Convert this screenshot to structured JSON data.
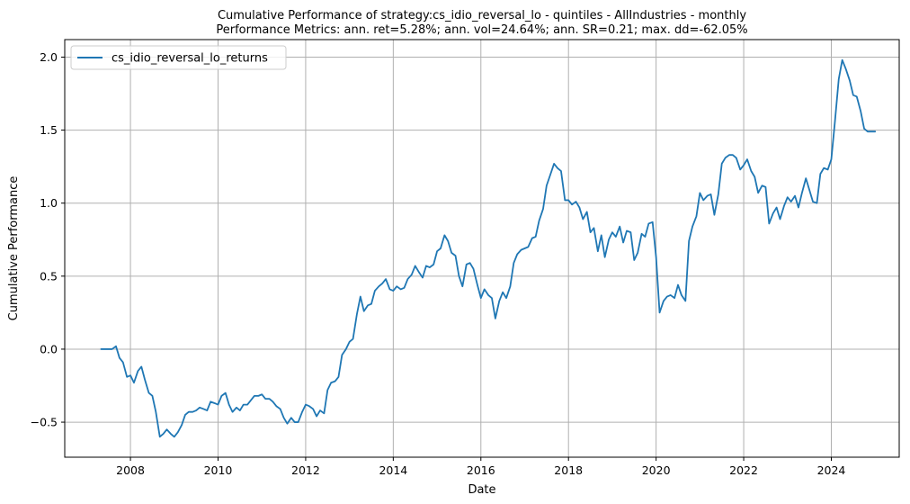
{
  "chart_data": {
    "type": "line",
    "title": "Cumulative Performance of strategy:cs_idio_reversal_lo - quintiles - AllIndustries - monthly",
    "subtitle": "Performance Metrics: ann. ret=5.28%; ann. vol=24.64%; ann. SR=0.21; max. dd=-62.05%",
    "xlabel": "Date",
    "ylabel": "Cumulative Performance",
    "xlim": [
      2006.5,
      2025.55
    ],
    "ylim": [
      -0.74,
      2.12
    ],
    "x_ticks": [
      2008,
      2010,
      2012,
      2014,
      2016,
      2018,
      2020,
      2022,
      2024
    ],
    "x_tick_labels": [
      "2008",
      "2010",
      "2012",
      "2014",
      "2016",
      "2018",
      "2020",
      "2022",
      "2024"
    ],
    "y_ticks": [
      -0.5,
      0.0,
      0.5,
      1.0,
      1.5,
      2.0
    ],
    "y_tick_labels": [
      "−0.5",
      "0.0",
      "0.5",
      "1.0",
      "1.5",
      "2.0"
    ],
    "grid": true,
    "legend_position": "top-left",
    "series": [
      {
        "name": "cs_idio_reversal_lo_returns",
        "color": "#1f77b4",
        "x": [
          2007.33,
          2007.42,
          2007.5,
          2007.58,
          2007.67,
          2007.75,
          2007.83,
          2007.92,
          2008.0,
          2008.08,
          2008.17,
          2008.25,
          2008.33,
          2008.42,
          2008.5,
          2008.58,
          2008.67,
          2008.75,
          2008.83,
          2008.92,
          2009.0,
          2009.08,
          2009.17,
          2009.25,
          2009.33,
          2009.42,
          2009.5,
          2009.58,
          2009.67,
          2009.75,
          2009.83,
          2009.92,
          2010.0,
          2010.08,
          2010.17,
          2010.25,
          2010.33,
          2010.42,
          2010.5,
          2010.58,
          2010.67,
          2010.75,
          2010.83,
          2010.92,
          2011.0,
          2011.08,
          2011.17,
          2011.25,
          2011.33,
          2011.42,
          2011.5,
          2011.58,
          2011.67,
          2011.75,
          2011.83,
          2011.92,
          2012.0,
          2012.08,
          2012.17,
          2012.25,
          2012.33,
          2012.42,
          2012.5,
          2012.58,
          2012.67,
          2012.75,
          2012.83,
          2012.92,
          2013.0,
          2013.08,
          2013.17,
          2013.25,
          2013.33,
          2013.42,
          2013.5,
          2013.58,
          2013.67,
          2013.75,
          2013.83,
          2013.92,
          2014.0,
          2014.08,
          2014.17,
          2014.25,
          2014.33,
          2014.42,
          2014.5,
          2014.58,
          2014.67,
          2014.75,
          2014.83,
          2014.92,
          2015.0,
          2015.08,
          2015.17,
          2015.25,
          2015.33,
          2015.42,
          2015.5,
          2015.58,
          2015.67,
          2015.75,
          2015.83,
          2015.92,
          2016.0,
          2016.08,
          2016.17,
          2016.25,
          2016.33,
          2016.42,
          2016.5,
          2016.58,
          2016.67,
          2016.75,
          2016.83,
          2016.92,
          2017.0,
          2017.08,
          2017.17,
          2017.25,
          2017.33,
          2017.42,
          2017.5,
          2017.58,
          2017.67,
          2017.75,
          2017.83,
          2017.92,
          2018.0,
          2018.08,
          2018.17,
          2018.25,
          2018.33,
          2018.42,
          2018.5,
          2018.58,
          2018.67,
          2018.75,
          2018.83,
          2018.92,
          2019.0,
          2019.08,
          2019.17,
          2019.25,
          2019.33,
          2019.42,
          2019.5,
          2019.58,
          2019.67,
          2019.75,
          2019.83,
          2019.92,
          2020.0,
          2020.08,
          2020.17,
          2020.25,
          2020.33,
          2020.42,
          2020.5,
          2020.58,
          2020.67,
          2020.75,
          2020.83,
          2020.92,
          2021.0,
          2021.08,
          2021.17,
          2021.25,
          2021.33,
          2021.42,
          2021.5,
          2021.58,
          2021.67,
          2021.75,
          2021.83,
          2021.92,
          2022.0,
          2022.08,
          2022.17,
          2022.25,
          2022.33,
          2022.42,
          2022.5,
          2022.58,
          2022.67,
          2022.75,
          2022.83,
          2022.92,
          2023.0,
          2023.08,
          2023.17,
          2023.25,
          2023.33,
          2023.42,
          2023.5,
          2023.58,
          2023.67,
          2023.75,
          2023.83,
          2023.92,
          2024.0,
          2024.08,
          2024.17,
          2024.25,
          2024.33,
          2024.42,
          2024.5,
          2024.58,
          2024.67,
          2024.75,
          2024.83,
          2024.92,
          2025.0
        ],
        "y": [
          0.0,
          0.0,
          0.0,
          0.0,
          0.02,
          -0.06,
          -0.09,
          -0.19,
          -0.18,
          -0.23,
          -0.15,
          -0.12,
          -0.21,
          -0.3,
          -0.32,
          -0.43,
          -0.6,
          -0.58,
          -0.55,
          -0.58,
          -0.6,
          -0.57,
          -0.52,
          -0.45,
          -0.43,
          -0.43,
          -0.42,
          -0.4,
          -0.41,
          -0.42,
          -0.36,
          -0.37,
          -0.38,
          -0.32,
          -0.3,
          -0.38,
          -0.43,
          -0.4,
          -0.42,
          -0.38,
          -0.38,
          -0.35,
          -0.32,
          -0.32,
          -0.31,
          -0.34,
          -0.34,
          -0.36,
          -0.39,
          -0.41,
          -0.47,
          -0.51,
          -0.47,
          -0.5,
          -0.5,
          -0.43,
          -0.38,
          -0.39,
          -0.41,
          -0.46,
          -0.42,
          -0.44,
          -0.28,
          -0.23,
          -0.22,
          -0.19,
          -0.04,
          0.0,
          0.05,
          0.07,
          0.24,
          0.36,
          0.26,
          0.3,
          0.31,
          0.4,
          0.43,
          0.45,
          0.48,
          0.41,
          0.4,
          0.43,
          0.41,
          0.42,
          0.48,
          0.51,
          0.57,
          0.53,
          0.49,
          0.57,
          0.56,
          0.58,
          0.67,
          0.69,
          0.78,
          0.74,
          0.66,
          0.64,
          0.5,
          0.43,
          0.58,
          0.59,
          0.55,
          0.44,
          0.35,
          0.41,
          0.37,
          0.35,
          0.21,
          0.33,
          0.39,
          0.35,
          0.43,
          0.59,
          0.65,
          0.68,
          0.69,
          0.7,
          0.76,
          0.77,
          0.88,
          0.96,
          1.12,
          1.19,
          1.27,
          1.24,
          1.22,
          1.02,
          1.02,
          0.99,
          1.01,
          0.97,
          0.89,
          0.94,
          0.8,
          0.83,
          0.67,
          0.78,
          0.63,
          0.75,
          0.8,
          0.77,
          0.84,
          0.73,
          0.81,
          0.8,
          0.61,
          0.66,
          0.79,
          0.77,
          0.86,
          0.87,
          0.63,
          0.25,
          0.33,
          0.36,
          0.37,
          0.35,
          0.44,
          0.37,
          0.33,
          0.74,
          0.84,
          0.91,
          1.07,
          1.02,
          1.05,
          1.06,
          0.92,
          1.06,
          1.27,
          1.31,
          1.33,
          1.33,
          1.31,
          1.23,
          1.26,
          1.3,
          1.22,
          1.18,
          1.07,
          1.12,
          1.11,
          0.86,
          0.93,
          0.97,
          0.89,
          0.98,
          1.04,
          1.01,
          1.05,
          0.97,
          1.07,
          1.17,
          1.09,
          1.01,
          1.0,
          1.2,
          1.24,
          1.23,
          1.3,
          1.55,
          1.85,
          1.98,
          1.92,
          1.84,
          1.74,
          1.73,
          1.63,
          1.51,
          1.49,
          1.49,
          1.49
        ]
      }
    ]
  }
}
